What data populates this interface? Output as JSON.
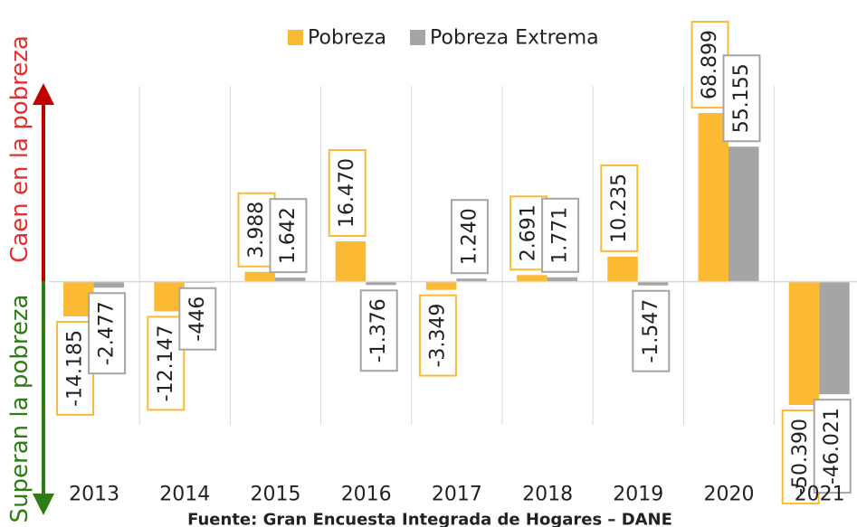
{
  "chart_data": {
    "type": "bar",
    "categories": [
      "2013",
      "2014",
      "2015",
      "2016",
      "2017",
      "2018",
      "2019",
      "2020",
      "2021"
    ],
    "series": [
      {
        "name": "Pobreza",
        "color": "#fbb934",
        "values": [
          -14185,
          -12147,
          3988,
          16470,
          -3349,
          2691,
          10235,
          68899,
          -50390
        ],
        "value_labels": [
          "-14.185",
          "-12.147",
          "3.988",
          "16.470",
          "-3.349",
          "2.691",
          "10.235",
          "68.899",
          "-50.390"
        ]
      },
      {
        "name": "Pobreza Extrema",
        "color": "#a5a5a5",
        "values": [
          -2477,
          -446,
          1642,
          -1376,
          1240,
          1771,
          -1547,
          55155,
          -46021
        ],
        "value_labels": [
          "-2.477",
          "-446",
          "1.642",
          "-1.376",
          "1.240",
          "1.771",
          "-1.547",
          "55.155",
          "-46.021"
        ]
      }
    ],
    "ylim": [
      -60000,
      80000
    ],
    "grid": true,
    "legend": "top",
    "annotations": {
      "up": "Caen en la pobreza",
      "down": "Superan la pobreza"
    },
    "source": "Fuente: Gran Encuesta Integrada de Hogares – DANE"
  }
}
